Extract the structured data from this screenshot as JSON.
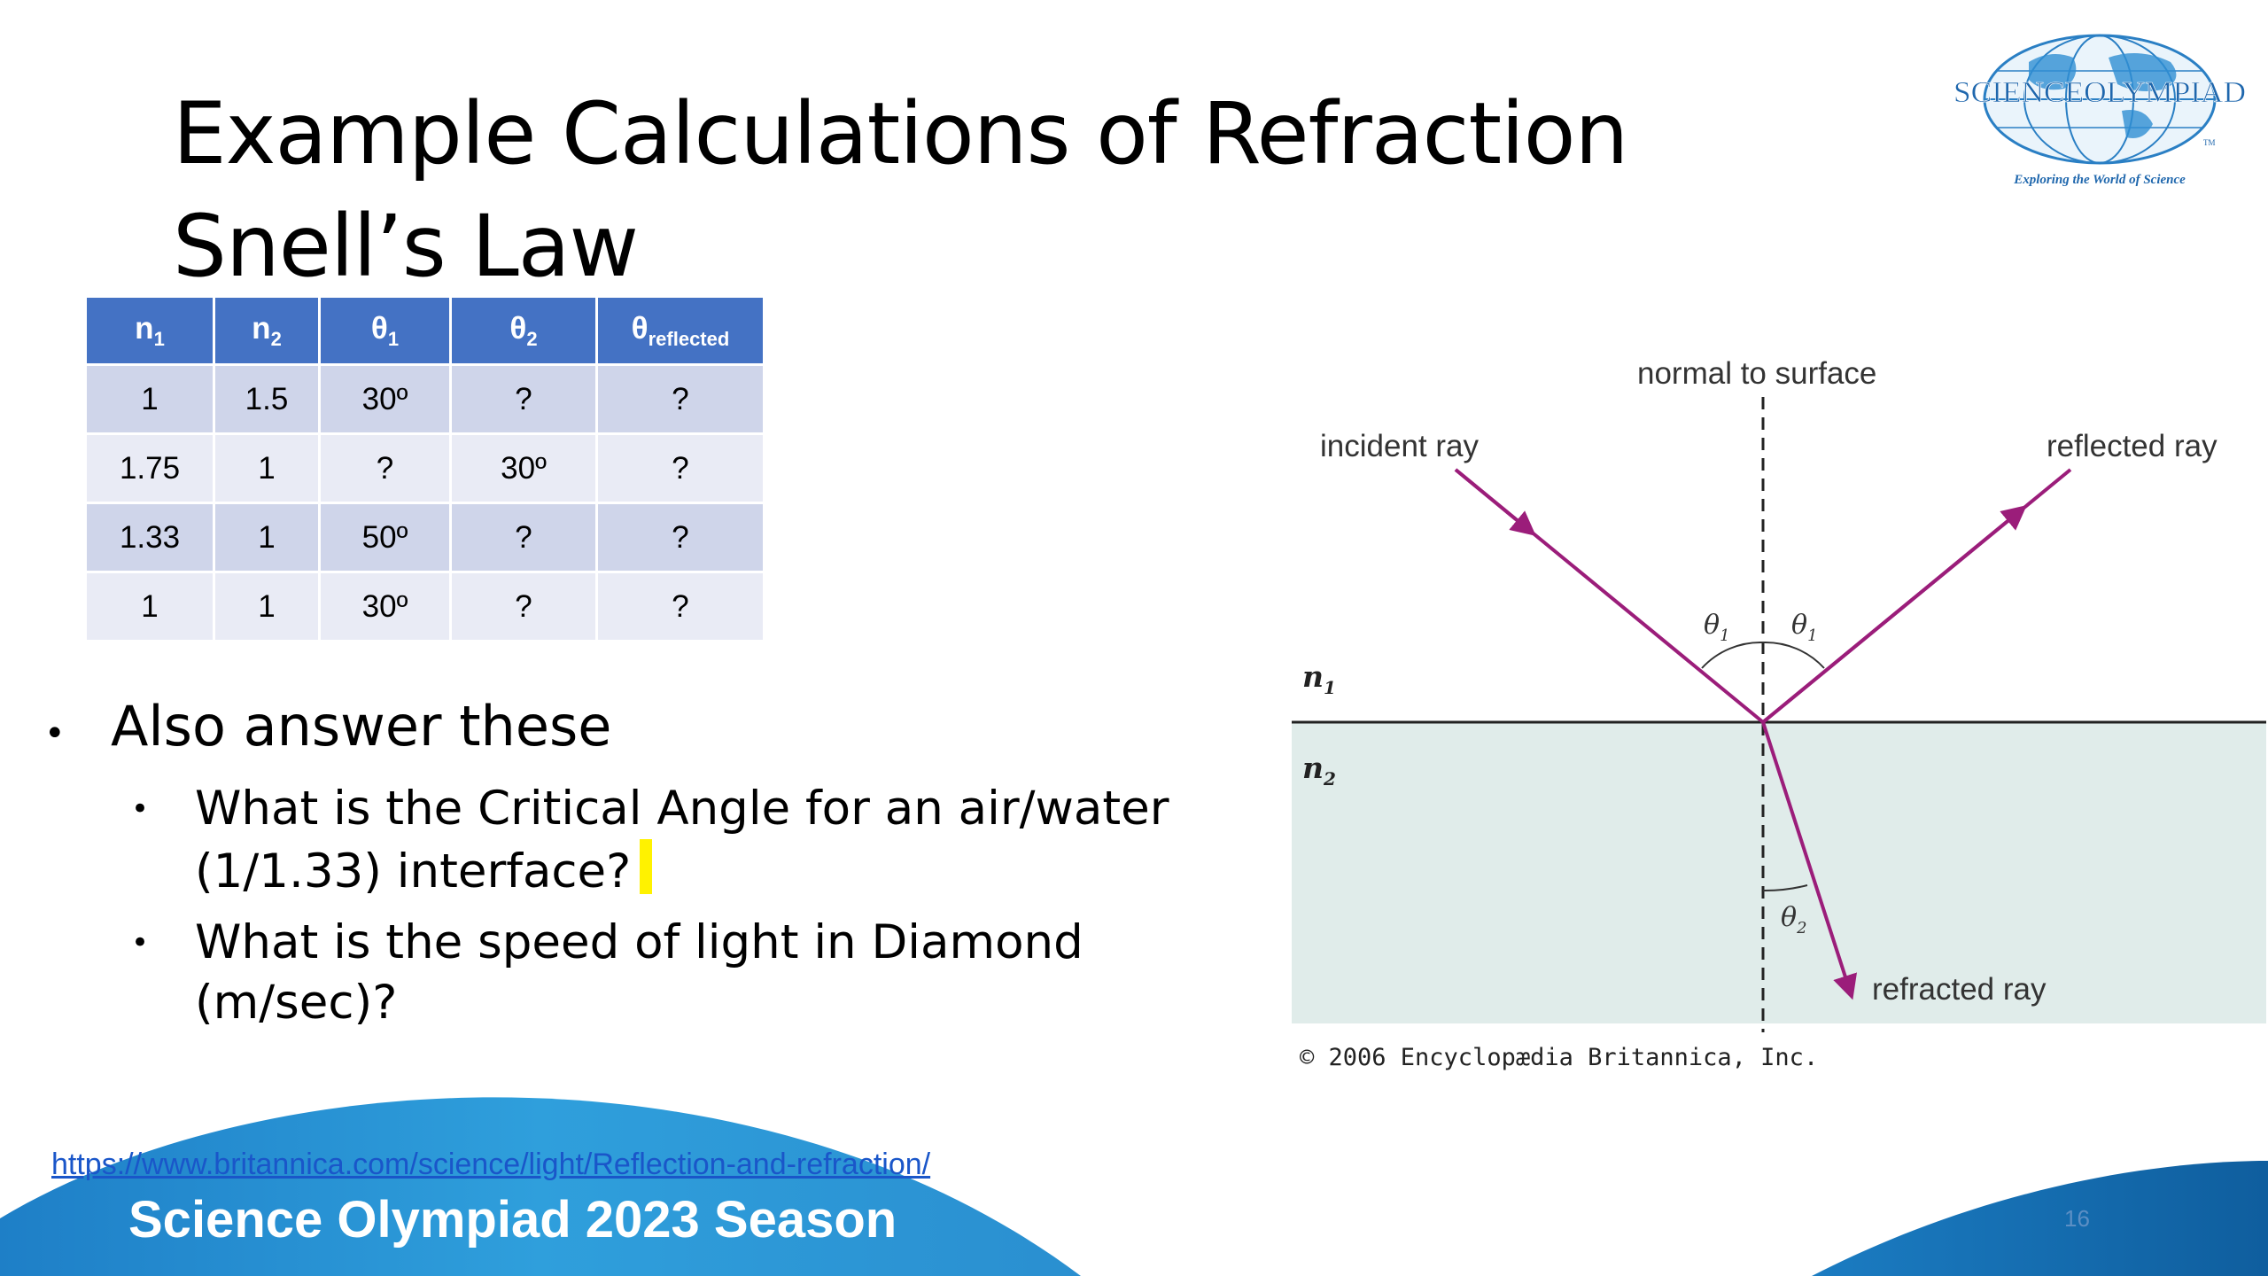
{
  "slide": {
    "title_line1": "Example Calculations of Refraction",
    "title_line2": "Snell’s Law",
    "page_number": "16"
  },
  "logo": {
    "name": "SCIENCEOLYMPIAD",
    "tagline": "Exploring the World of Science",
    "tm": "TM"
  },
  "table": {
    "headers": [
      {
        "base": "n",
        "sub": "1"
      },
      {
        "base": "n",
        "sub": "2"
      },
      {
        "base": "θ",
        "sub": "1"
      },
      {
        "base": "θ",
        "sub": "2"
      },
      {
        "base": "θ",
        "sub": "reflected"
      }
    ],
    "rows": [
      [
        "1",
        "1.5",
        "30º",
        "?",
        "?"
      ],
      [
        "1.75",
        "1",
        "?",
        "30º",
        "?"
      ],
      [
        "1.33",
        "1",
        "50º",
        "?",
        "?"
      ],
      [
        "1",
        "1",
        "30º",
        "?",
        "?"
      ]
    ]
  },
  "bullets": {
    "main": "Also answer these",
    "sub1": "What is the Critical Angle for an air/water (1/1.33) interface?",
    "sub2": "What is the speed of light in Diamond (m/sec)?"
  },
  "diagram": {
    "normal_label": "normal to surface",
    "incident_label": "incident ray",
    "reflected_label": "reflected ray",
    "refracted_label": "refracted ray",
    "n1": "n",
    "n1_sub": "1",
    "n2": "n",
    "n2_sub": "2",
    "theta": "θ",
    "theta1_sub": "1",
    "theta2_sub": "2",
    "copyright": "© 2006 Encyclopædia Britannica, Inc.",
    "colors": {
      "ray": "#9b1d7a",
      "medium2": "#e0ecea"
    }
  },
  "footer": {
    "link": "https://www.britannica.com/science/light/Reflection-and-refraction/",
    "season": "Science Olympiad 2023 Season"
  },
  "theme": {
    "table_header": "#4472c4",
    "footer_blue": "#1d86cc"
  }
}
